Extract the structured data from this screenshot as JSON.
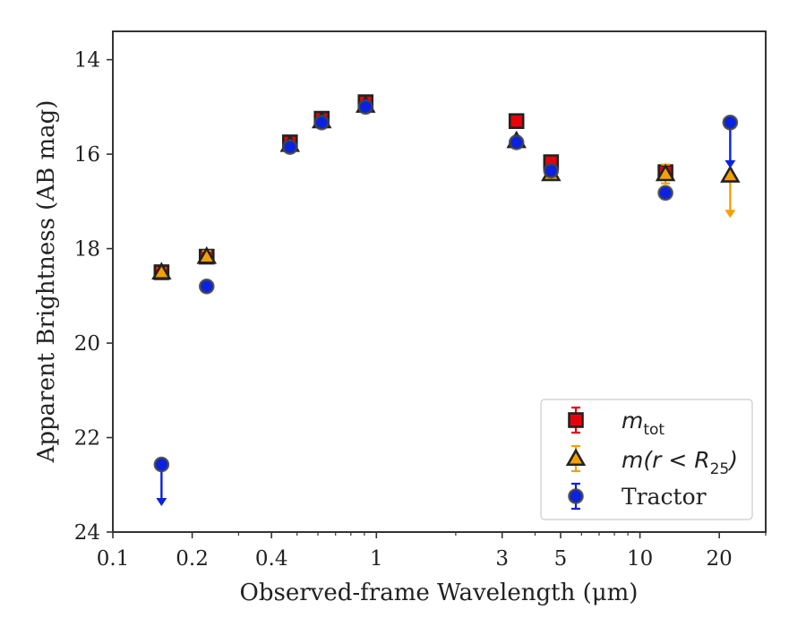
{
  "chart_data": {
    "type": "scatter",
    "title": "",
    "xlabel": "Observed-frame Wavelength (μm)",
    "ylabel": "Apparent Brightness (AB mag)",
    "xscale": "log",
    "xlim": [
      0.1,
      30
    ],
    "ylim": [
      24,
      13.4
    ],
    "y_inverted": true,
    "grid": false,
    "legend_position": "lower-right",
    "x_ticks": [
      {
        "value": 0.1,
        "label": "0.1"
      },
      {
        "value": 0.2,
        "label": "0.2"
      },
      {
        "value": 0.4,
        "label": "0.4"
      },
      {
        "value": 1,
        "label": "1"
      },
      {
        "value": 3,
        "label": "3"
      },
      {
        "value": 5,
        "label": "5"
      },
      {
        "value": 10,
        "label": "10"
      },
      {
        "value": 20,
        "label": "20"
      }
    ],
    "y_ticks": [
      {
        "value": 14,
        "label": "14"
      },
      {
        "value": 16,
        "label": "16"
      },
      {
        "value": 18,
        "label": "18"
      },
      {
        "value": 20,
        "label": "20"
      },
      {
        "value": 22,
        "label": "22"
      },
      {
        "value": 24,
        "label": "24"
      }
    ],
    "series": [
      {
        "name": "m_tot",
        "legend_main": "m",
        "legend_sub": "tot",
        "marker": "square",
        "color": "#e8000b",
        "errcolor": "#e8000b",
        "points": [
          {
            "x": 0.153,
            "y": 18.5,
            "err": 0.08
          },
          {
            "x": 0.227,
            "y": 18.17,
            "err": 0.08
          },
          {
            "x": 0.47,
            "y": 15.75,
            "err": 0.05
          },
          {
            "x": 0.62,
            "y": 15.25,
            "err": 0.05
          },
          {
            "x": 0.91,
            "y": 14.9,
            "err": 0.05
          },
          {
            "x": 3.4,
            "y": 15.3,
            "err": 0.05
          },
          {
            "x": 4.6,
            "y": 16.17,
            "err": 0.06
          },
          {
            "x": 12.5,
            "y": 16.38,
            "err": 0.12
          }
        ]
      },
      {
        "name": "m(r < R25)",
        "legend_text": "m(r < R",
        "legend_sub": "25",
        "legend_close": ")",
        "marker": "triangle",
        "color": "#f5a000",
        "errcolor": "#f5a000",
        "points": [
          {
            "x": 0.153,
            "y": 18.5,
            "err": 0.08
          },
          {
            "x": 0.227,
            "y": 18.17,
            "err": 0.12
          },
          {
            "x": 0.47,
            "y": 15.8,
            "err": 0.05
          },
          {
            "x": 0.62,
            "y": 15.3,
            "err": 0.05
          },
          {
            "x": 0.91,
            "y": 14.97,
            "err": 0.05
          },
          {
            "x": 3.4,
            "y": 15.72,
            "err": 0.05
          },
          {
            "x": 4.6,
            "y": 16.42,
            "err": 0.08
          },
          {
            "x": 12.5,
            "y": 16.42,
            "err": 0.2
          },
          {
            "x": 22,
            "y": 16.45,
            "err": 0,
            "upper_limit": true,
            "arrow_to": 17.35
          }
        ]
      },
      {
        "name": "Tractor",
        "legend_text": "Tractor",
        "marker": "circle",
        "color": "#0a22e0",
        "errcolor": "#0a22e0",
        "points": [
          {
            "x": 0.153,
            "y": 22.57,
            "err": 0,
            "upper_limit": true,
            "arrow_to": 23.45
          },
          {
            "x": 0.227,
            "y": 18.8,
            "err": 0.08
          },
          {
            "x": 0.47,
            "y": 15.85,
            "err": 0.05
          },
          {
            "x": 0.62,
            "y": 15.33,
            "err": 0.05
          },
          {
            "x": 0.91,
            "y": 15.0,
            "err": 0.05
          },
          {
            "x": 3.4,
            "y": 15.75,
            "err": 0.05
          },
          {
            "x": 4.6,
            "y": 16.35,
            "err": 0.06
          },
          {
            "x": 12.5,
            "y": 16.82,
            "err": 0.08
          },
          {
            "x": 22,
            "y": 15.33,
            "err": 0,
            "upper_limit": true,
            "arrow_to": 16.3
          }
        ]
      }
    ]
  }
}
